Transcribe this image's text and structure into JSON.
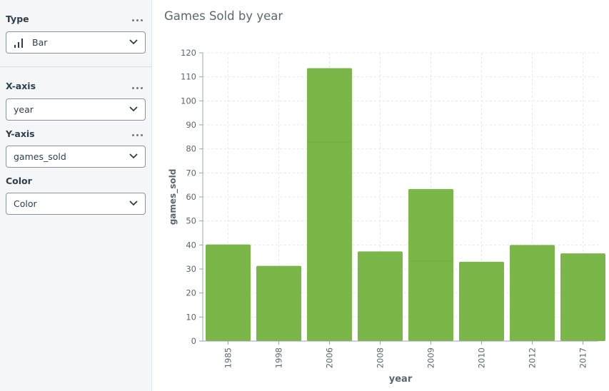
{
  "sidebar": {
    "type": {
      "label": "Type",
      "value": "Bar",
      "icon": "bar-chart-icon"
    },
    "xaxis": {
      "label": "X-axis",
      "value": "year"
    },
    "yaxis": {
      "label": "Y-axis",
      "value": "games_sold"
    },
    "color": {
      "label": "Color",
      "value": "Color"
    }
  },
  "colors": {
    "bar": "#7ab648",
    "bar_divider": "#72ad41",
    "axis_text": "#5b6670",
    "grid": "#e6e8eb"
  },
  "chart_data": {
    "type": "bar",
    "title": "Games Sold by year",
    "xlabel": "year",
    "ylabel": "games_sold",
    "ylim": [
      0,
      120
    ],
    "yticks": [
      0,
      10,
      20,
      30,
      40,
      50,
      60,
      70,
      80,
      90,
      100,
      110,
      120
    ],
    "grid": true,
    "categories": [
      "1985",
      "1998",
      "2006",
      "2008",
      "2009",
      "2010",
      "2012",
      "2017"
    ],
    "values": [
      40.2,
      31.3,
      113.6,
      37.3,
      63.3,
      33.0,
      40.0,
      36.5
    ],
    "stack_segments": [
      [
        40.2
      ],
      [
        31.3
      ],
      [
        82.9,
        30.7
      ],
      [
        37.3
      ],
      [
        33.3,
        30.0
      ],
      [
        33.0
      ],
      [
        40.0
      ],
      [
        36.5
      ]
    ]
  }
}
